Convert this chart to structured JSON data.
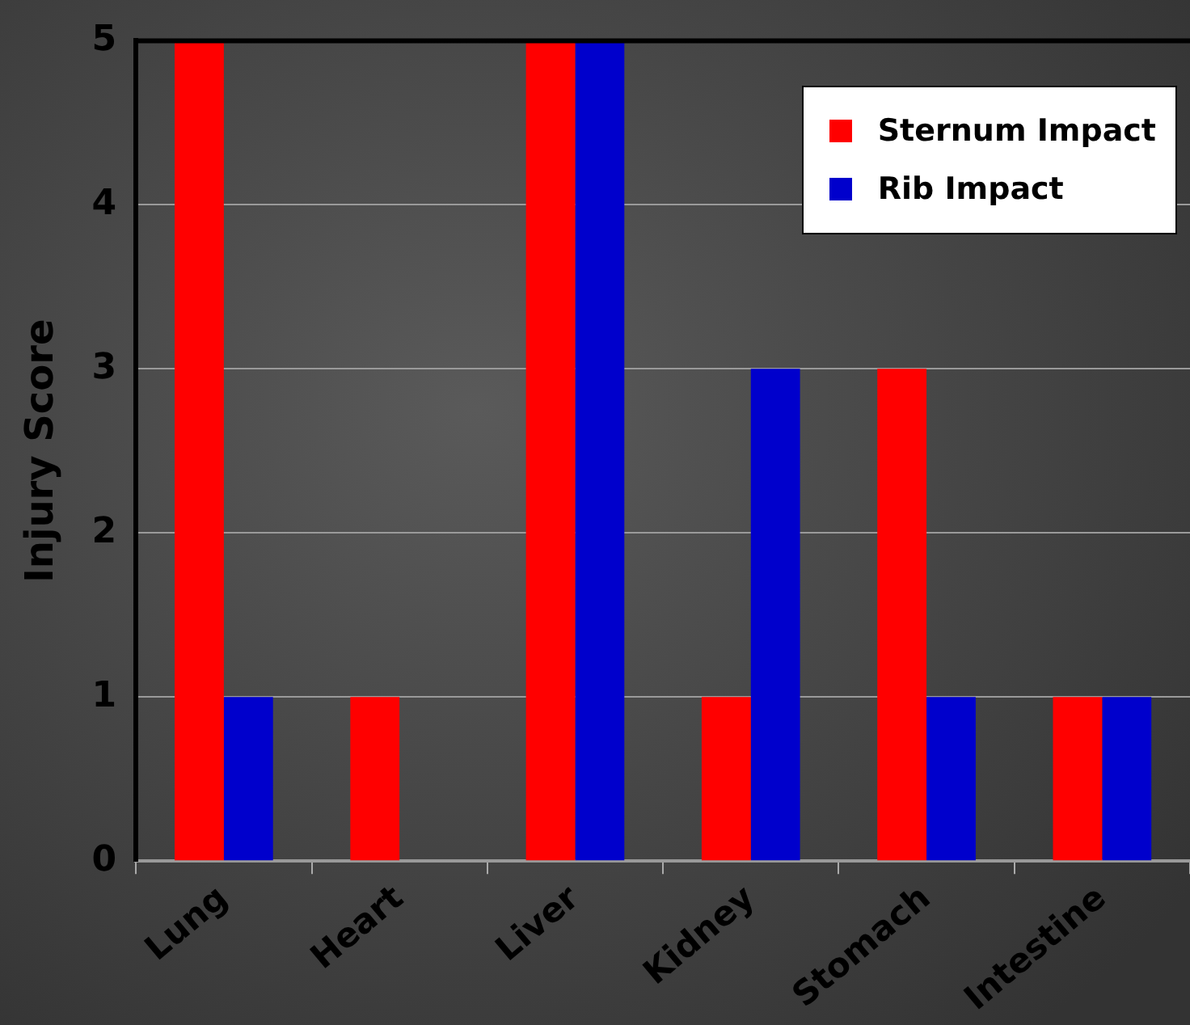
{
  "chart_data": {
    "type": "bar",
    "ylabel": "Injury Score",
    "categories": [
      "Lung",
      "Heart",
      "Liver",
      "Kidney",
      "Stomach",
      "Intestine"
    ],
    "series": [
      {
        "name": "Sternum Impact",
        "color": "#ff0000",
        "values": [
          5,
          1,
          5,
          1,
          3,
          1
        ]
      },
      {
        "name": "Rib Impact",
        "color": "#0000cc",
        "values": [
          1,
          0,
          5,
          3,
          1,
          1
        ]
      }
    ],
    "ylim": [
      0,
      5
    ],
    "yticks": [
      0,
      1,
      2,
      3,
      4,
      5
    ],
    "grid": "y",
    "legend": "top right"
  }
}
